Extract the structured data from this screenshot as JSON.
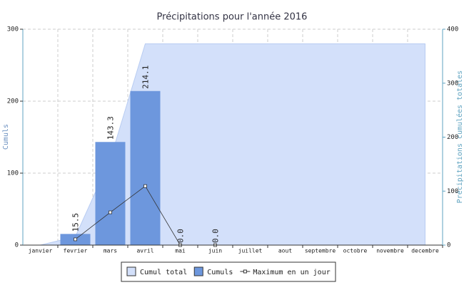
{
  "chart_data": {
    "type": "combo",
    "title": "Précipitations pour l'année 2016",
    "y_label": "Cumuls",
    "y2_label": "Précipitations cumulées totales",
    "categories": [
      "janvier",
      "fevrier",
      "mars",
      "avril",
      "mai",
      "juin",
      "juillet",
      "aout",
      "septembre",
      "octobre",
      "novembre",
      "decembre"
    ],
    "ylim": [
      0,
      300
    ],
    "yticks": [
      0,
      100,
      200,
      300
    ],
    "y2lim": [
      0,
      400
    ],
    "y2ticks": [
      0,
      100,
      200,
      300,
      400
    ],
    "grid": true,
    "legend": "bottom",
    "series": [
      {
        "name": "Cumul total",
        "type": "area",
        "axis": "y2",
        "color": "#d3e0fa",
        "values": [
          0,
          15.5,
          158.8,
          372.9,
          372.9,
          372.9,
          372.9,
          372.9,
          372.9,
          372.9,
          372.9,
          372.9
        ]
      },
      {
        "name": "Cumuls",
        "type": "bar",
        "color": "#6d97dd",
        "values": [
          null,
          15.5,
          143.3,
          214.1,
          0,
          0,
          null,
          null,
          null,
          null,
          null,
          null
        ],
        "value_labels": [
          null,
          "15.5",
          "143.3",
          "214.1",
          "0.0",
          "0.0",
          null,
          null,
          null,
          null,
          null,
          null
        ]
      },
      {
        "name": "Maximum en un jour",
        "type": "line",
        "color": "#333333",
        "values": [
          null,
          8,
          45.5,
          82,
          0,
          0,
          null,
          null,
          null,
          null,
          null,
          null
        ]
      }
    ]
  }
}
